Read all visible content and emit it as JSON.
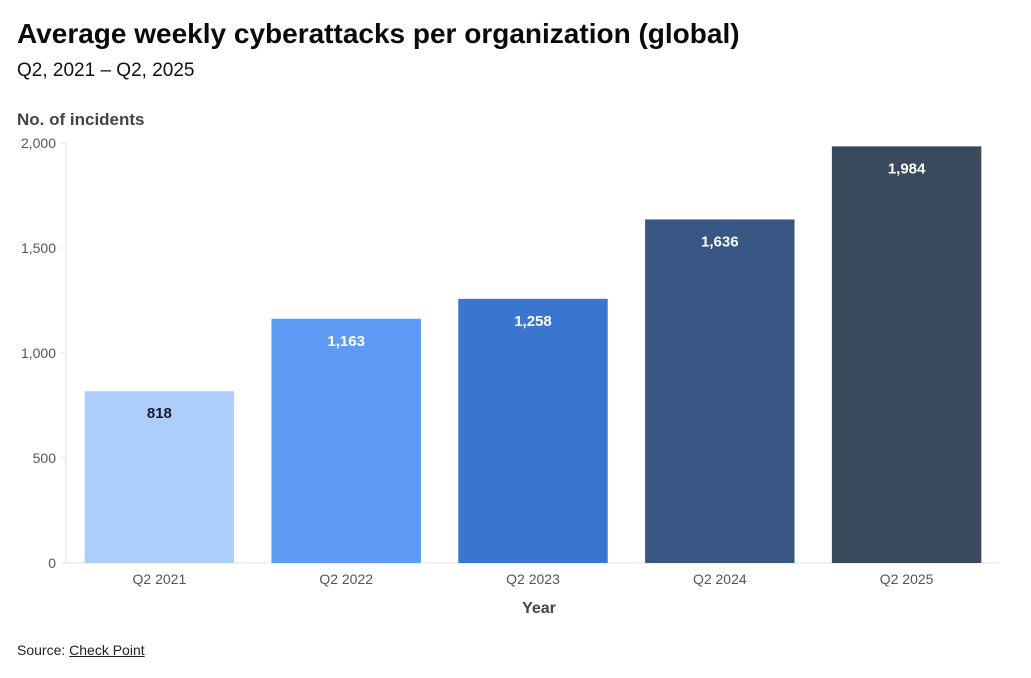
{
  "title": "Average weekly cyberattacks per organization (global)",
  "subtitle": "Q2, 2021 – Q2, 2025",
  "source": {
    "prefix": "Source:",
    "link_text": "Check Point"
  },
  "chart_data": {
    "type": "bar",
    "ylabel": "No. of incidents",
    "xlabel": "Year",
    "categories": [
      "Q2 2021",
      "Q2 2022",
      "Q2 2023",
      "Q2 2024",
      "Q2 2025"
    ],
    "values": [
      818,
      1163,
      1258,
      1636,
      1984
    ],
    "value_labels": [
      "818",
      "1,163",
      "1,258",
      "1,636",
      "1,984"
    ],
    "ylim": [
      0,
      2000
    ],
    "yticks": [
      0,
      500,
      1000,
      1500,
      2000
    ],
    "ytick_labels": [
      "0",
      "500",
      "1,000",
      "1,500",
      "2,000"
    ],
    "bar_colors": [
      "#adcdfb",
      "#5e9bf5",
      "#3a76d0",
      "#375683",
      "#394a5d"
    ],
    "label_colors": [
      "#1a1a2e",
      "#ffffff",
      "#ffffff",
      "#ffffff",
      "#ffffff"
    ],
    "grid": false,
    "legend": "none"
  }
}
